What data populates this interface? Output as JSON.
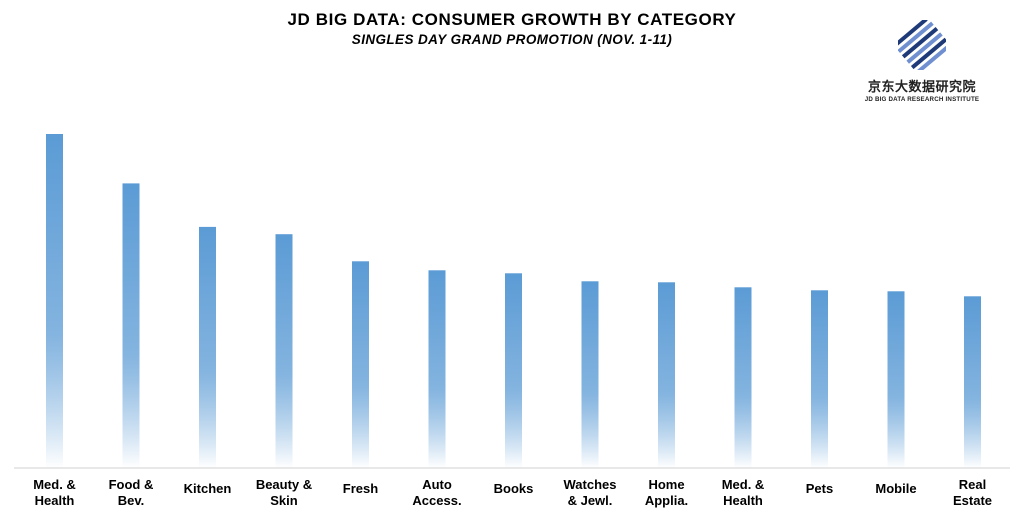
{
  "header": {
    "title": "JD BIG DATA: CONSUMER GROWTH BY CATEGORY",
    "subtitle": "SINGLES DAY GRAND PROMOTION (NOV. 1-11)"
  },
  "logo": {
    "chinese_name": "京东大数据研究院",
    "english_name": "JD BIG DATA RESEARCH INSTITUTE",
    "icon": "jd-stripes-logo-icon"
  },
  "colors": {
    "bar_top": "#5b9bd5",
    "bar_bottom": "#ffffff",
    "logo_navy": "#1f3a78",
    "logo_blue": "#6f8fd0"
  },
  "chart_data": {
    "type": "bar",
    "title": "JD BIG DATA: CONSUMER GROWTH BY CATEGORY",
    "subtitle": "SINGLES DAY GRAND PROMOTION (NOV. 1-11)",
    "xlabel": "",
    "ylabel": "",
    "grid": false,
    "legend": "none",
    "y_axis_shown": false,
    "categories": [
      [
        "Med. &",
        "Health"
      ],
      [
        "Food &",
        "Bev."
      ],
      [
        "Kitchen"
      ],
      [
        "Beauty &",
        "Skin"
      ],
      [
        "Fresh"
      ],
      [
        "Auto",
        "Access."
      ],
      [
        "Books"
      ],
      [
        "Watches",
        "& Jewl."
      ],
      [
        "Home",
        "Applia."
      ],
      [
        "Med. &",
        "Health"
      ],
      [
        "Pets"
      ],
      [
        "Mobile"
      ],
      [
        "Real",
        "Estate"
      ]
    ],
    "values": [
      100,
      85.2,
      72.2,
      70.0,
      61.9,
      59.2,
      58.3,
      55.9,
      55.6,
      54.1,
      53.2,
      52.9,
      51.4
    ],
    "ylim": [
      0,
      100
    ]
  }
}
